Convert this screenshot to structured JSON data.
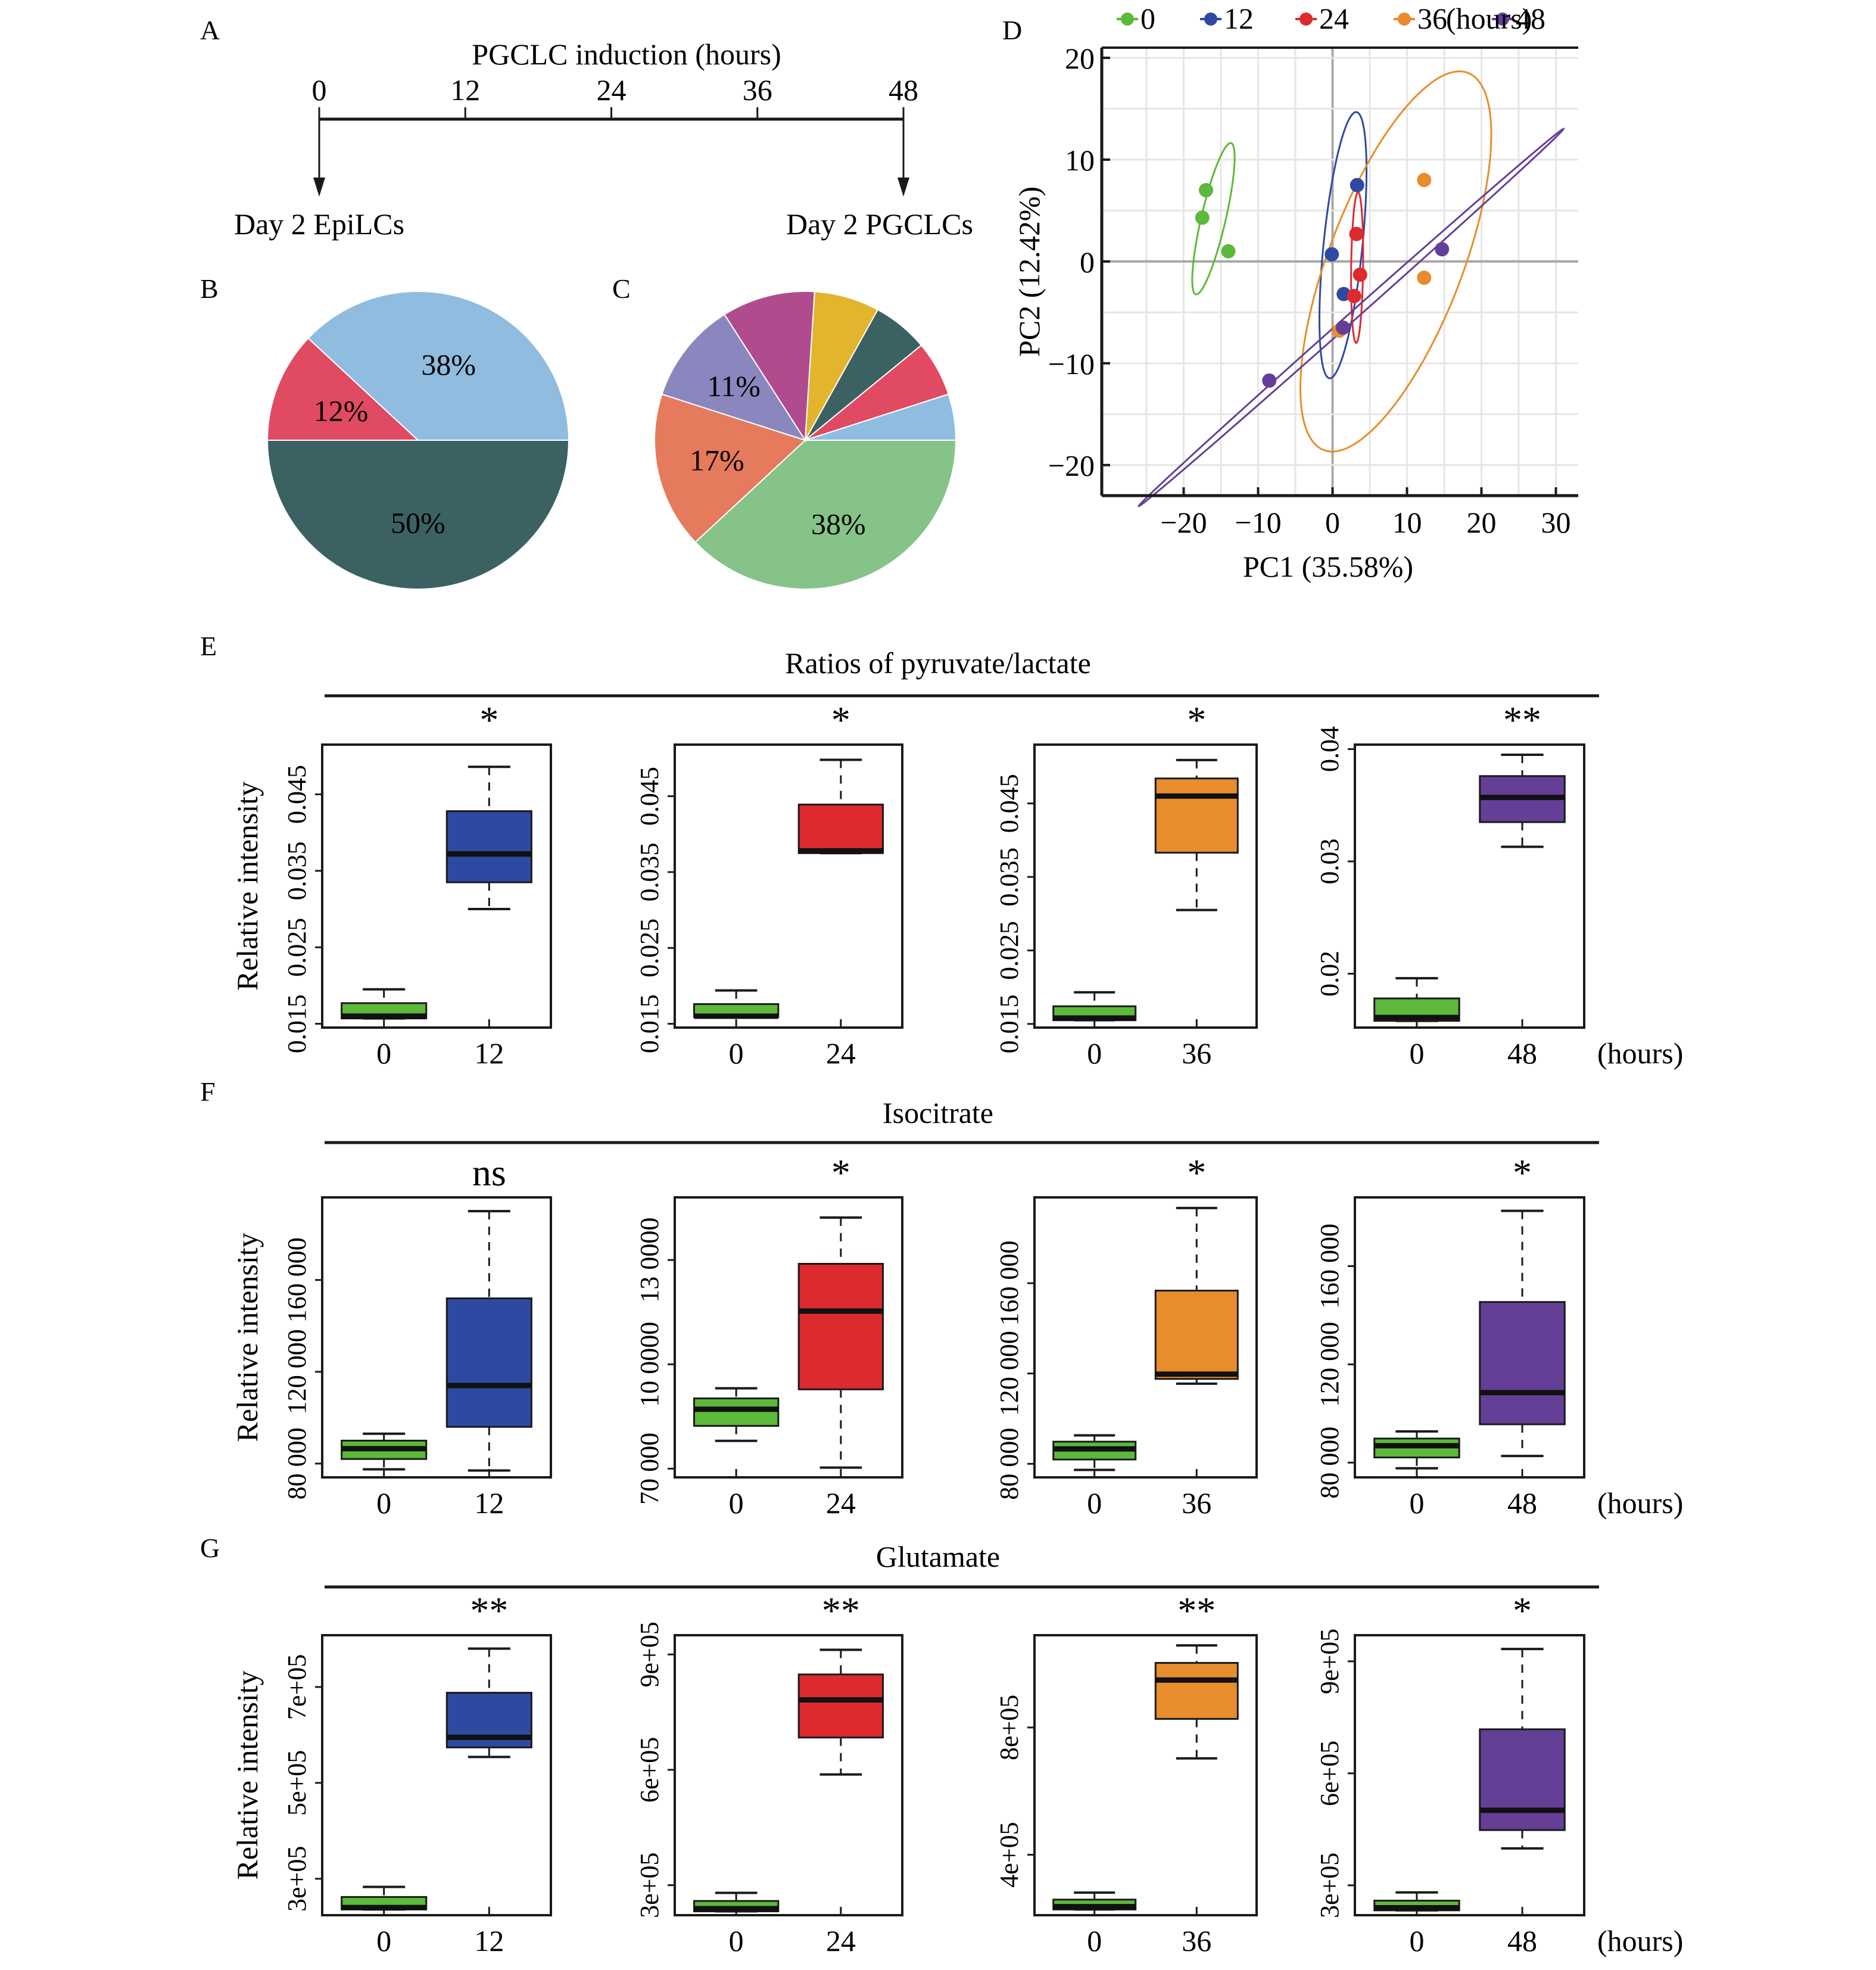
{
  "panel_letters": [
    "A",
    "B",
    "C",
    "D",
    "E",
    "F",
    "G"
  ],
  "chart_data": [
    {
      "id": "A",
      "type": "timeline",
      "title": "PGCLC induction (hours)",
      "ticks": [
        "0",
        "12",
        "24",
        "36",
        "48"
      ],
      "start_label": "Day 2 EpiLCs",
      "end_label": "Day 2 PGCLCs"
    },
    {
      "id": "B",
      "type": "pie",
      "slices": [
        {
          "value": 50,
          "label": "50%",
          "color": "#3b6163"
        },
        {
          "value": 12,
          "label": "12%",
          "color": "#e04a62"
        },
        {
          "value": 38,
          "label": "38%",
          "color": "#90bce0"
        }
      ]
    },
    {
      "id": "C",
      "type": "pie",
      "slices": [
        {
          "value": 38,
          "label": "38%",
          "color": "#86c388"
        },
        {
          "value": 17,
          "label": "17%",
          "color": "#e67a5c"
        },
        {
          "value": 11,
          "label": "11%",
          "color": "#8a87be"
        },
        {
          "value": 10,
          "label": "",
          "color": "#b04b8e"
        },
        {
          "value": 7,
          "label": "",
          "color": "#e3b52c"
        },
        {
          "value": 6,
          "label": "",
          "color": "#3b6163"
        },
        {
          "value": 6,
          "label": "",
          "color": "#e04a62"
        },
        {
          "value": 5,
          "label": "",
          "color": "#90bce0"
        }
      ]
    },
    {
      "id": "D",
      "type": "scatter",
      "xlabel": "PC1 (35.58%)",
      "ylabel": "PC2 (12.42%)",
      "xlim": [
        -31,
        33
      ],
      "ylim": [
        -23,
        21
      ],
      "xticks": [
        -20,
        -10,
        0,
        10,
        20,
        30
      ],
      "yticks": [
        -20,
        -10,
        0,
        10,
        20
      ],
      "grid": true,
      "legend_position": "top",
      "legend_suffix": "(hours)",
      "series": [
        {
          "name": "0",
          "color": "#5cb93a",
          "points": [
            [
              -17,
              7
            ],
            [
              -17.5,
              4.3
            ],
            [
              -14,
              1
            ]
          ]
        },
        {
          "name": "12",
          "color": "#2e4aa0",
          "points": [
            [
              3.3,
              7.5
            ],
            [
              -0.1,
              0.7
            ],
            [
              1.5,
              -3.2
            ]
          ]
        },
        {
          "name": "24",
          "color": "#dd2a2e",
          "points": [
            [
              3.2,
              2.7
            ],
            [
              3.7,
              -1.3
            ],
            [
              2.9,
              -3.4
            ]
          ]
        },
        {
          "name": "36",
          "color": "#e88d2b",
          "points": [
            [
              12.3,
              8
            ],
            [
              12.3,
              -1.6
            ],
            [
              0.9,
              -6.8
            ]
          ]
        },
        {
          "name": "48",
          "color": "#643f97",
          "points": [
            [
              14.7,
              1.2
            ],
            [
              1.4,
              -6.5
            ],
            [
              -8.5,
              -11.7
            ]
          ]
        }
      ],
      "ellipses": [
        {
          "series": "0",
          "cx": -16,
          "cy": 4.2,
          "rx": 7.8,
          "ry": 1.6,
          "angle_deg": -72
        },
        {
          "series": "12",
          "cx": 1.4,
          "cy": 1.6,
          "rx": 13.2,
          "ry": 2.6,
          "angle_deg": -82
        },
        {
          "series": "24",
          "cx": 3.3,
          "cy": -0.6,
          "rx": 7.4,
          "ry": 0.8,
          "angle_deg": -89
        },
        {
          "series": "36",
          "cx": 8.5,
          "cy": 0,
          "rx": 21,
          "ry": 8.5,
          "angle_deg": -60
        },
        {
          "series": "48",
          "cx": 2.5,
          "cy": -5.5,
          "rx": 34,
          "ry": 0.45,
          "angle_deg": -33
        }
      ]
    },
    {
      "id": "E",
      "type": "boxplot",
      "title": "Ratios of pyruvate/lactate",
      "ylabel": "Relative intensity",
      "x_unit": "(hours)",
      "plots": [
        {
          "sig": "*",
          "ylim": [
            0.0145,
            0.0515
          ],
          "yticks": [
            0.015,
            0.025,
            0.035,
            0.045
          ],
          "ytick_labels": [
            "0.015",
            "0.025",
            "0.035",
            "0.045"
          ],
          "groups": [
            {
              "label": "0",
              "color": "#5cb93a",
              "min": 0.0157,
              "q1": 0.0157,
              "median": 0.016,
              "q3": 0.0177,
              "max": 0.0195
            },
            {
              "label": "12",
              "color": "#2e4aa0",
              "min": 0.03,
              "q1": 0.0335,
              "median": 0.0372,
              "q3": 0.0428,
              "max": 0.0486
            }
          ]
        },
        {
          "sig": "*",
          "ylim": [
            0.0145,
            0.0518
          ],
          "yticks": [
            0.015,
            0.025,
            0.035,
            0.045
          ],
          "ytick_labels": [
            "0.015",
            "0.025",
            "0.035",
            "0.045"
          ],
          "groups": [
            {
              "label": "0",
              "color": "#5cb93a",
              "min": 0.0159,
              "q1": 0.0159,
              "median": 0.016,
              "q3": 0.0176,
              "max": 0.0194
            },
            {
              "label": "24",
              "color": "#dd2a2e",
              "min": 0.0375,
              "q1": 0.0375,
              "median": 0.0378,
              "q3": 0.0439,
              "max": 0.0498
            }
          ]
        },
        {
          "sig": "*",
          "ylim": [
            0.0145,
            0.053
          ],
          "yticks": [
            0.015,
            0.025,
            0.035,
            0.045
          ],
          "ytick_labels": [
            "0.015",
            "0.025",
            "0.035",
            "0.045"
          ],
          "groups": [
            {
              "label": "0",
              "color": "#5cb93a",
              "min": 0.0155,
              "q1": 0.0155,
              "median": 0.0158,
              "q3": 0.0174,
              "max": 0.0193
            },
            {
              "label": "36",
              "color": "#e88d2b",
              "min": 0.0305,
              "q1": 0.0383,
              "median": 0.046,
              "q3": 0.0484,
              "max": 0.0509
            }
          ]
        },
        {
          "sig": "**",
          "ylim": [
            0.0152,
            0.0404
          ],
          "yticks": [
            0.02,
            0.03,
            0.04
          ],
          "ytick_labels": [
            "0.02",
            "0.03",
            "0.04"
          ],
          "groups": [
            {
              "label": "0",
              "color": "#5cb93a",
              "min": 0.0158,
              "q1": 0.0158,
              "median": 0.0161,
              "q3": 0.0178,
              "max": 0.0196
            },
            {
              "label": "48",
              "color": "#643f97",
              "min": 0.0313,
              "q1": 0.0335,
              "median": 0.0357,
              "q3": 0.0376,
              "max": 0.0395
            }
          ]
        }
      ]
    },
    {
      "id": "F",
      "type": "boxplot",
      "title": "Isocitrate",
      "ylabel": "Relative intensity",
      "x_unit": "(hours)",
      "plots": [
        {
          "sig": "ns",
          "ylim": [
            74000,
            196000
          ],
          "yticks": [
            80000,
            120000,
            160000
          ],
          "ytick_labels": [
            "80 000",
            "120 000",
            "160 000"
          ],
          "groups": [
            {
              "label": "0",
              "color": "#5cb93a",
              "min": 77500,
              "q1": 82000,
              "median": 86500,
              "q3": 90000,
              "max": 93000
            },
            {
              "label": "12",
              "color": "#2e4aa0",
              "min": 77000,
              "q1": 96000,
              "median": 114000,
              "q3": 152000,
              "max": 190000
            }
          ]
        },
        {
          "sig": "*",
          "ylim": [
            67500,
            148000
          ],
          "yticks": [
            70000,
            100000,
            130000
          ],
          "ytick_labels": [
            "70 000",
            "10 0000",
            "13 0000"
          ],
          "groups": [
            {
              "label": "0",
              "color": "#5cb93a",
              "min": 78000,
              "q1": 82300,
              "median": 87100,
              "q3": 90200,
              "max": 93100
            },
            {
              "label": "24",
              "color": "#dd2a2e",
              "min": 70300,
              "q1": 92800,
              "median": 115300,
              "q3": 128900,
              "max": 142200
            }
          ]
        },
        {
          "sig": "*",
          "ylim": [
            74000,
            198000
          ],
          "yticks": [
            80000,
            120000,
            160000
          ],
          "ytick_labels": [
            "80 000",
            "120 000",
            "160 000"
          ],
          "groups": [
            {
              "label": "0",
              "color": "#5cb93a",
              "min": 77300,
              "q1": 81900,
              "median": 86600,
              "q3": 89800,
              "max": 92600
            },
            {
              "label": "36",
              "color": "#e88d2b",
              "min": 115500,
              "q1": 117600,
              "median": 119700,
              "q3": 156700,
              "max": 193300
            }
          ]
        },
        {
          "sig": "*",
          "ylim": [
            74000,
            188000
          ],
          "yticks": [
            80000,
            120000,
            160000
          ],
          "ytick_labels": [
            "80 000",
            "120 000",
            "160 000"
          ],
          "groups": [
            {
              "label": "0",
              "color": "#5cb93a",
              "min": 77700,
              "q1": 82100,
              "median": 86900,
              "q3": 89800,
              "max": 92700
            },
            {
              "label": "48",
              "color": "#643f97",
              "min": 82700,
              "q1": 95600,
              "median": 108500,
              "q3": 145400,
              "max": 182500
            }
          ]
        }
      ]
    },
    {
      "id": "G",
      "type": "boxplot",
      "title": "Glutamate",
      "ylabel": "Relative intensity",
      "x_unit": "(hours)",
      "plots": [
        {
          "sig": "**",
          "ylim": [
            224000,
            808000
          ],
          "yticks": [
            300000,
            500000,
            700000
          ],
          "ytick_labels": [
            "3e+05",
            "5e+05",
            "7e+05"
          ],
          "groups": [
            {
              "label": "0",
              "color": "#5cb93a",
              "min": 236000,
              "q1": 236000,
              "median": 240000,
              "q3": 262000,
              "max": 283000
            },
            {
              "label": "12",
              "color": "#2e4aa0",
              "min": 554000,
              "q1": 574000,
              "median": 595000,
              "q3": 688000,
              "max": 780000
            }
          ]
        },
        {
          "sig": "**",
          "ylim": [
            222000,
            950000
          ],
          "yticks": [
            300000,
            600000,
            900000
          ],
          "ytick_labels": [
            "3e+05",
            "6e+05",
            "9e+05"
          ],
          "groups": [
            {
              "label": "0",
              "color": "#5cb93a",
              "min": 232000,
              "q1": 232000,
              "median": 239000,
              "q3": 259000,
              "max": 280000
            },
            {
              "label": "24",
              "color": "#dd2a2e",
              "min": 588000,
              "q1": 684000,
              "median": 782000,
              "q3": 848000,
              "max": 912000
            }
          ]
        },
        {
          "sig": "**",
          "ylim": [
            210000,
            1090000
          ],
          "yticks": [
            400000,
            800000
          ],
          "ytick_labels": [
            "4e+05",
            "8e+05"
          ],
          "groups": [
            {
              "label": "0",
              "color": "#5cb93a",
              "min": 228000,
              "q1": 228000,
              "median": 237000,
              "q3": 259000,
              "max": 281000
            },
            {
              "label": "36",
              "color": "#e88d2b",
              "min": 703000,
              "q1": 827000,
              "median": 949000,
              "q3": 1003000,
              "max": 1058000
            }
          ]
        },
        {
          "sig": "*",
          "ylim": [
            220000,
            970000
          ],
          "yticks": [
            300000,
            600000,
            900000
          ],
          "ytick_labels": [
            "3e+05",
            "6e+05",
            "9e+05"
          ],
          "groups": [
            {
              "label": "0",
              "color": "#5cb93a",
              "min": 233000,
              "q1": 233000,
              "median": 240000,
              "q3": 259000,
              "max": 281000
            },
            {
              "label": "48",
              "color": "#643f97",
              "min": 399000,
              "q1": 448000,
              "median": 501000,
              "q3": 718000,
              "max": 933000
            }
          ]
        }
      ]
    }
  ]
}
